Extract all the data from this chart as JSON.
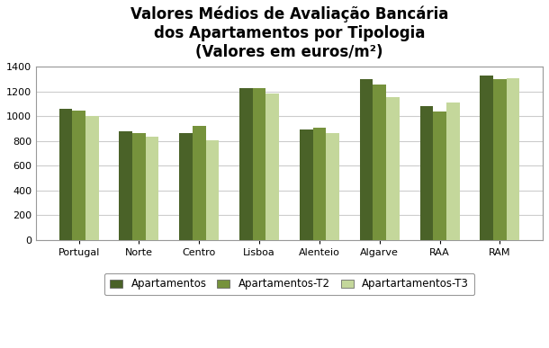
{
  "title": "Valores Médios de Avaliação Bancária\ndos Apartamentos por Tipologia\n(Valores em euros/m²)",
  "categories": [
    "Portugal",
    "Norte",
    "Centro",
    "Lisboa",
    "Alenteio",
    "Algarve",
    "RAA",
    "RAM"
  ],
  "series": {
    "Apartamentos": [
      1060,
      875,
      865,
      1230,
      890,
      1300,
      1080,
      1330
    ],
    "Apartamentos-T2": [
      1045,
      860,
      920,
      1230,
      905,
      1255,
      1040,
      1300
    ],
    "Apartartamentos-T3": [
      1000,
      835,
      805,
      1185,
      865,
      1155,
      1110,
      1310
    ]
  },
  "colors": {
    "Apartamentos": "#4a6228",
    "Apartamentos-T2": "#76923c",
    "Apartartamentos-T3": "#c4d79b"
  },
  "ylim": [
    0,
    1400
  ],
  "yticks": [
    0,
    200,
    400,
    600,
    800,
    1000,
    1200,
    1400
  ],
  "bar_width": 0.22,
  "background_color": "#ffffff",
  "plot_bg_color": "#ffffff",
  "title_fontsize": 12,
  "tick_fontsize": 8,
  "legend_fontsize": 8.5,
  "grid_color": "#cccccc",
  "spine_color": "#999999"
}
